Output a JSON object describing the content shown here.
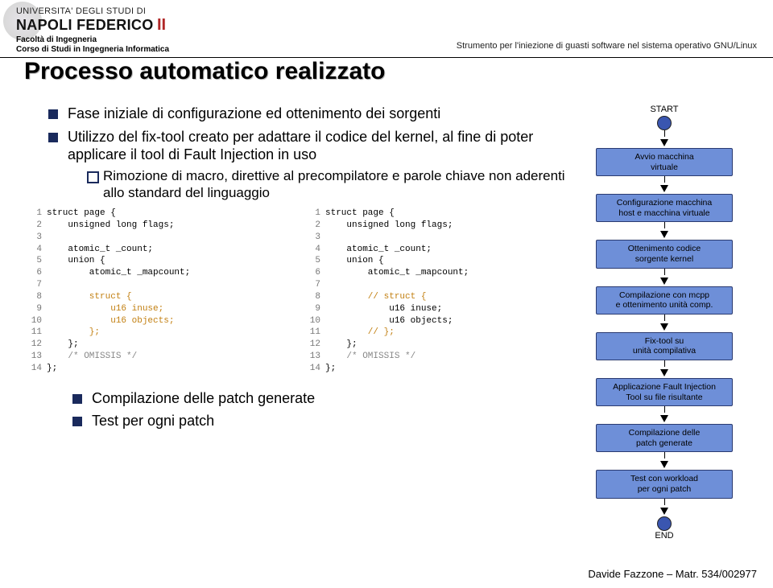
{
  "header": {
    "uni_line1": "UNIVERSITA' DEGLI STUDI DI",
    "uni_line2a": "NAPOLI FEDERICO",
    "uni_line2b": "II",
    "faculty": "Facoltà di Ingegneria",
    "course": "Corso di Studi in Ingegneria Informatica",
    "right": "Strumento per l'iniezione di guasti software nel sistema operativo GNU/Linux"
  },
  "title": "Processo automatico realizzato",
  "bullets": [
    "Fase iniziale di configurazione ed ottenimento dei sorgenti",
    "Utilizzo del fix-tool creato per adattare il codice del kernel, al fine di poter applicare il tool di Fault Injection in uso"
  ],
  "sub_bullet": "Rimozione di macro, direttive al precompilatore e parole chiave non aderenti allo standard del linguaggio",
  "code_left": [
    {
      "n": "1",
      "t": "struct page {",
      "kw": false
    },
    {
      "n": "2",
      "t": "    unsigned long flags;",
      "kw": false
    },
    {
      "n": "3",
      "t": "",
      "kw": false
    },
    {
      "n": "4",
      "t": "    atomic_t _count;",
      "kw": false
    },
    {
      "n": "5",
      "t": "    union {",
      "kw": false
    },
    {
      "n": "6",
      "t": "        atomic_t _mapcount;",
      "kw": false
    },
    {
      "n": "7",
      "t": "",
      "kw": false
    },
    {
      "n": "8",
      "t": "        struct {",
      "kw": true
    },
    {
      "n": "9",
      "t": "            u16 inuse;",
      "kw": true
    },
    {
      "n": "10",
      "t": "            u16 objects;",
      "kw": true
    },
    {
      "n": "11",
      "t": "        };",
      "kw": true
    },
    {
      "n": "12",
      "t": "    };",
      "kw": false
    },
    {
      "n": "13",
      "t": "    /* OMISSIS */",
      "cm": true
    },
    {
      "n": "14",
      "t": "};",
      "kw": false
    }
  ],
  "code_right": [
    {
      "n": "1",
      "t": "struct page {",
      "kw": false
    },
    {
      "n": "2",
      "t": "    unsigned long flags;",
      "kw": false
    },
    {
      "n": "3",
      "t": "",
      "kw": false
    },
    {
      "n": "4",
      "t": "    atomic_t _count;",
      "kw": false
    },
    {
      "n": "5",
      "t": "    union {",
      "kw": false
    },
    {
      "n": "6",
      "t": "        atomic_t _mapcount;",
      "kw": false
    },
    {
      "n": "7",
      "t": "",
      "kw": false
    },
    {
      "n": "8",
      "t": "        // struct {",
      "kw": true
    },
    {
      "n": "9",
      "t": "            u16 inuse;",
      "kw": false
    },
    {
      "n": "10",
      "t": "            u16 objects;",
      "kw": false
    },
    {
      "n": "11",
      "t": "        // };",
      "kw": true
    },
    {
      "n": "12",
      "t": "    };",
      "kw": false
    },
    {
      "n": "13",
      "t": "    /* OMISSIS */",
      "cm": true
    },
    {
      "n": "14",
      "t": "};",
      "kw": false
    }
  ],
  "lower_bullets": [
    "Compilazione delle patch generate",
    "Test per ogni patch"
  ],
  "flow": {
    "start": "START",
    "end": "END",
    "nodes": [
      "Avvio macchina\nvirtuale",
      "Configurazione macchina\nhost e macchina virtuale",
      "Ottenimento codice\nsorgente kernel",
      "Compilazione con mcpp\ne ottenimento unità comp.",
      "Fix-tool su\nunità compilativa",
      "Applicazione Fault Injection\nTool su file risultante",
      "Compilazione delle\npatch generate",
      "Test con workload\nper ogni patch"
    ],
    "node_color": "#6e8fd8",
    "circle_color": "#3a56b0"
  },
  "footer": "Davide Fazzone – Matr. 534/002977"
}
